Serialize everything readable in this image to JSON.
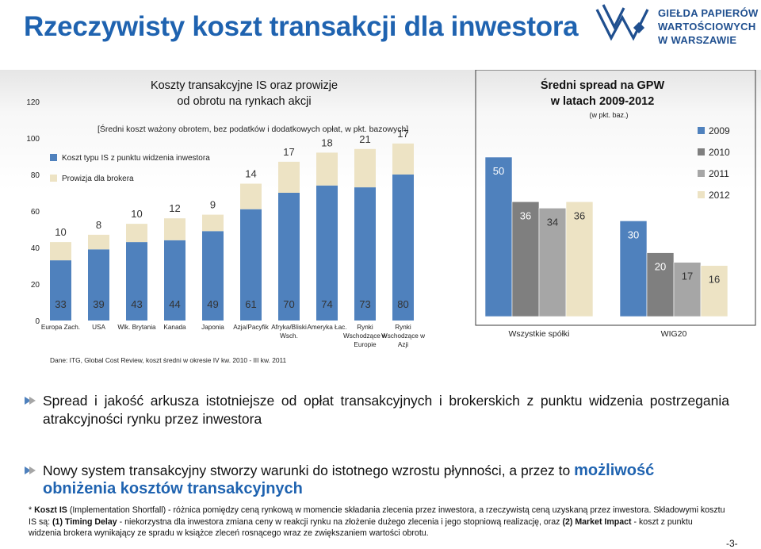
{
  "header": {
    "title": "Rzeczywisty koszt transakcji dla inwestora",
    "logo_lines": [
      "GIEŁDA PAPIERÓW",
      "WARTOŚCIOWYCH",
      "W WARSZAWIE"
    ]
  },
  "chart_data": [
    {
      "type": "bar",
      "stacked": true,
      "title": "Koszty transakcyjne IS oraz prowizje od obrotu na rynkach akcji",
      "subtitle": "[Średni koszt ważony obrotem, bez podatków i dodatkowych opłat, w pkt. bazowych]",
      "categories": [
        "Europa Zach.",
        "USA",
        "Wlk. Brytania",
        "Kanada",
        "Japonia",
        "Azja/Pacyfik",
        "Afryka/Bliski Wsch.",
        "Ameryka Łac.",
        "Rynki Wschodzące w Europie",
        "Rynki Wschodzące w Azji"
      ],
      "series": [
        {
          "name": "Koszt typu IS z punktu widzenia inwestora",
          "color": "#4f81bd",
          "values": [
            33,
            39,
            43,
            44,
            49,
            61,
            70,
            74,
            73,
            80
          ]
        },
        {
          "name": "Prowizja dla brokera",
          "color": "#ede3c4",
          "values": [
            10,
            8,
            10,
            12,
            9,
            14,
            17,
            18,
            21,
            17
          ]
        }
      ],
      "yticks": [
        0,
        20,
        40,
        60,
        80,
        100,
        120
      ],
      "ylim": [
        0,
        120
      ],
      "source": "Dane: ITG, Global Cost Review, koszt średni w okresie IV kw. 2010 - III kw. 2011"
    },
    {
      "type": "bar",
      "title": "Średni spread na GPW w latach 2009-2012",
      "subtitle": "(w pkt. baz.)",
      "categories": [
        "Wszystkie spółki",
        "WIG20"
      ],
      "series": [
        {
          "name": "2009",
          "color": "#4f81bd",
          "values": [
            50,
            30
          ]
        },
        {
          "name": "2010",
          "color": "#7f7f7f",
          "values": [
            36,
            20
          ]
        },
        {
          "name": "2011",
          "color": "#a6a6a6",
          "values": [
            34,
            17
          ]
        },
        {
          "name": "2012",
          "color": "#ede3c4",
          "values": [
            36,
            16
          ]
        }
      ],
      "ylim": [
        0,
        50
      ],
      "legend": "right"
    }
  ],
  "bullets": {
    "b1": "Spread i jakość arkusza istotniejsze od opłat transakcyjnych i brokerskich z punktu widzenia postrzegania atrakcyjności rynku przez inwestora",
    "b2_prefix": "Nowy system transakcyjny stworzy warunki do istotnego wzrostu płynności, a przez to",
    "b2_highlight": "możliwość obniżenia kosztów transakcyjnych"
  },
  "footnote": {
    "p1": "* ",
    "b1": "Koszt IS",
    "p2": " (Implementation Shortfall) - różnica pomiędzy ceną rynkową w momencie składania zlecenia przez inwestora, a rzeczywistą ceną uzyskaną przez inwestora. Składowymi kosztu IS są: ",
    "b2": "(1) Timing Delay",
    "p3": " - niekorzystna dla inwestora zmiana ceny w reakcji rynku na złożenie dużego zlecenia i jego stopniową realizację, oraz ",
    "b3": "(2) Market Impact",
    "p4": " - koszt z punktu widzenia brokera wynikający ze spradu w książce zleceń rosnącego wraz ze zwiększaniem wartości obrotu."
  },
  "page_number": "-3-"
}
